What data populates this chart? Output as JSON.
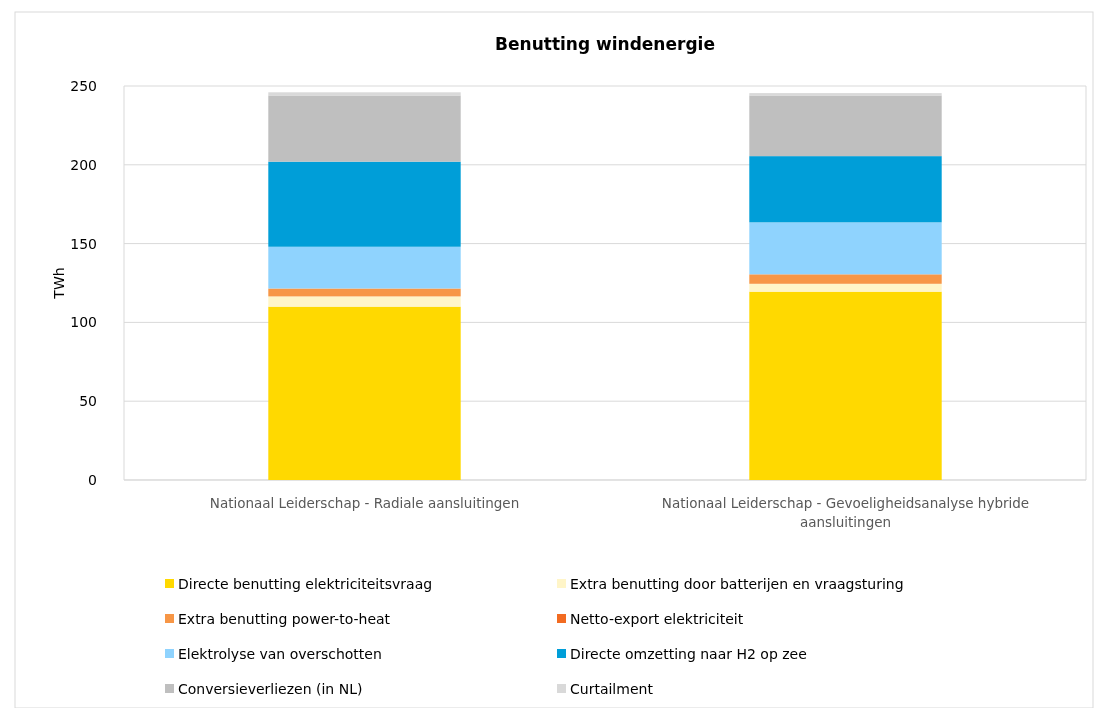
{
  "chart_data": {
    "type": "bar",
    "title": "Benutting windenergie",
    "ylabel": "TWh",
    "categories": [
      "Nationaal Leiderschap - Radiale aansluitingen",
      "Nationaal Leiderschap - Gevoeligheidsanalyse hybride aansluitingen"
    ],
    "stacked": true,
    "ylim": [
      0,
      250
    ],
    "yticks": [
      0,
      50,
      100,
      150,
      200,
      250
    ],
    "grid": "y",
    "legend": "bottom",
    "series": [
      {
        "name": "Directe benutting elektriciteitsvraag",
        "color": "#ffd900",
        "values": [
          110,
          119.5
        ]
      },
      {
        "name": "Extra benutting door batterijen en vraagsturing",
        "color": "#fff5c8",
        "values": [
          6.5,
          5
        ]
      },
      {
        "name": "Extra benutting power-to-heat",
        "color": "#f79646",
        "values": [
          5,
          6
        ]
      },
      {
        "name": "Netto-export elektriciteit",
        "color": "#f26b21",
        "values": [
          0,
          0
        ]
      },
      {
        "name": "Elektrolyse van overschotten",
        "color": "#8fd3fe",
        "values": [
          26.5,
          33
        ]
      },
      {
        "name": "Directe omzetting naar H2 op zee",
        "color": "#009ed8",
        "values": [
          54,
          42
        ]
      },
      {
        "name": "Conversieverliezen (in NL)",
        "color": "#bfbfbf",
        "values": [
          42,
          38.5
        ]
      },
      {
        "name": "Curtailment",
        "color": "#d9d9d9",
        "values": [
          2,
          1.5
        ]
      }
    ]
  }
}
